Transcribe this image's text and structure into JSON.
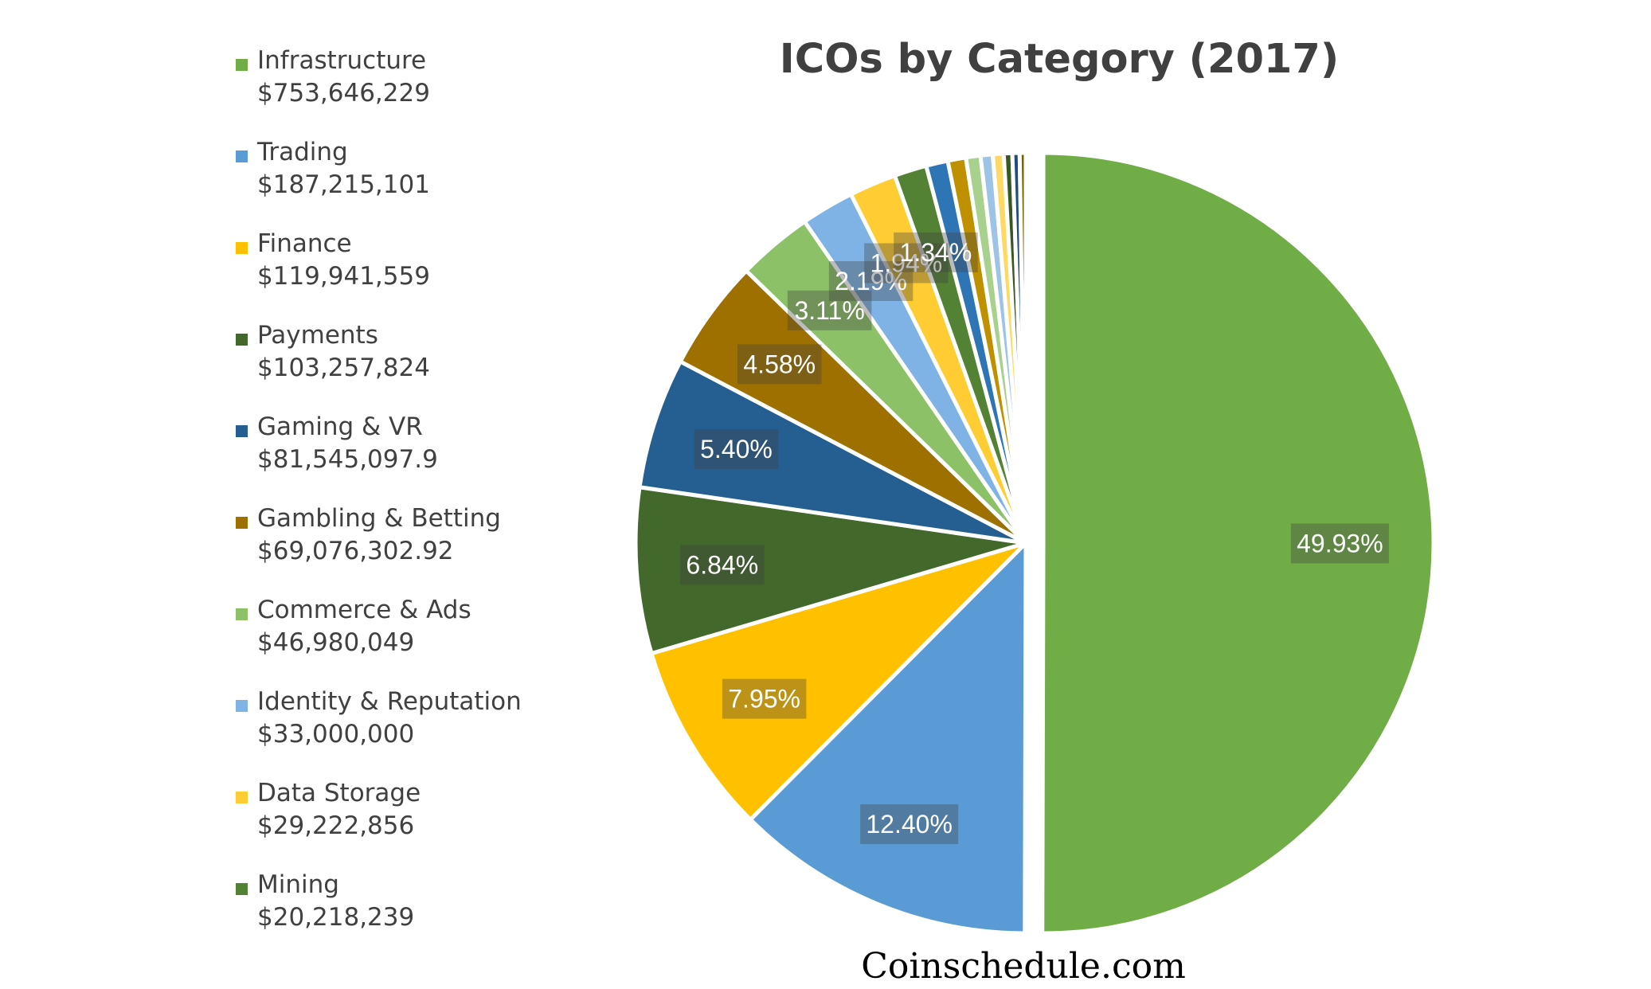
{
  "chart_data": {
    "type": "pie",
    "title": "ICOs by Category (2017)",
    "legend_position": "left",
    "slices": [
      {
        "name": "Infrastructure",
        "value_label": "$753,646,229",
        "percent": 49.93,
        "percent_label": "49.93%",
        "color": "#70AD47"
      },
      {
        "name": "Trading",
        "value_label": "$187,215,101",
        "percent": 12.4,
        "percent_label": "12.40%",
        "color": "#5B9BD5"
      },
      {
        "name": "Finance",
        "value_label": "$119,941,559",
        "percent": 7.95,
        "percent_label": "7.95%",
        "color": "#FFC000"
      },
      {
        "name": "Payments",
        "value_label": "$103,257,824",
        "percent": 6.84,
        "percent_label": "6.84%",
        "color": "#43682B"
      },
      {
        "name": "Gaming & VR",
        "value_label": "$81,545,097.9",
        "percent": 5.4,
        "percent_label": "5.40%",
        "color": "#255E91"
      },
      {
        "name": "Gambling & Betting",
        "value_label": "$69,076,302.92",
        "percent": 4.58,
        "percent_label": "4.58%",
        "color": "#9E7000"
      },
      {
        "name": "Commerce & Ads",
        "value_label": "$46,980,049",
        "percent": 3.11,
        "percent_label": "3.11%",
        "color": "#8CC168"
      },
      {
        "name": "Identity & Reputation",
        "value_label": "$33,000,000",
        "percent": 2.19,
        "percent_label": "2.19%",
        "color": "#7FB2E5"
      },
      {
        "name": "Data Storage",
        "value_label": "$29,222,856",
        "percent": 1.94,
        "percent_label": "1.94%",
        "color": "#FFCD33"
      },
      {
        "name": "Mining",
        "value_label": "$20,218,239",
        "percent": 1.34,
        "percent_label": "1.34%",
        "color": "#548235"
      },
      {
        "name": "",
        "value_label": "",
        "percent": 0.9,
        "percent_label": "",
        "color": "#2E75B6"
      },
      {
        "name": "",
        "value_label": "",
        "percent": 0.75,
        "percent_label": "",
        "color": "#BF9000"
      },
      {
        "name": "",
        "value_label": "",
        "percent": 0.6,
        "percent_label": "",
        "color": "#A9D18E"
      },
      {
        "name": "",
        "value_label": "",
        "percent": 0.5,
        "percent_label": "",
        "color": "#9DC3E6"
      },
      {
        "name": "",
        "value_label": "",
        "percent": 0.45,
        "percent_label": "",
        "color": "#FFD966"
      },
      {
        "name": "",
        "value_label": "",
        "percent": 0.35,
        "percent_label": "",
        "color": "#385723"
      },
      {
        "name": "",
        "value_label": "",
        "percent": 0.3,
        "percent_label": "",
        "color": "#1F4E79"
      },
      {
        "name": "",
        "value_label": "",
        "percent": 0.25,
        "percent_label": "",
        "color": "#7F6000"
      }
    ]
  },
  "source_label": "Coinschedule.com"
}
